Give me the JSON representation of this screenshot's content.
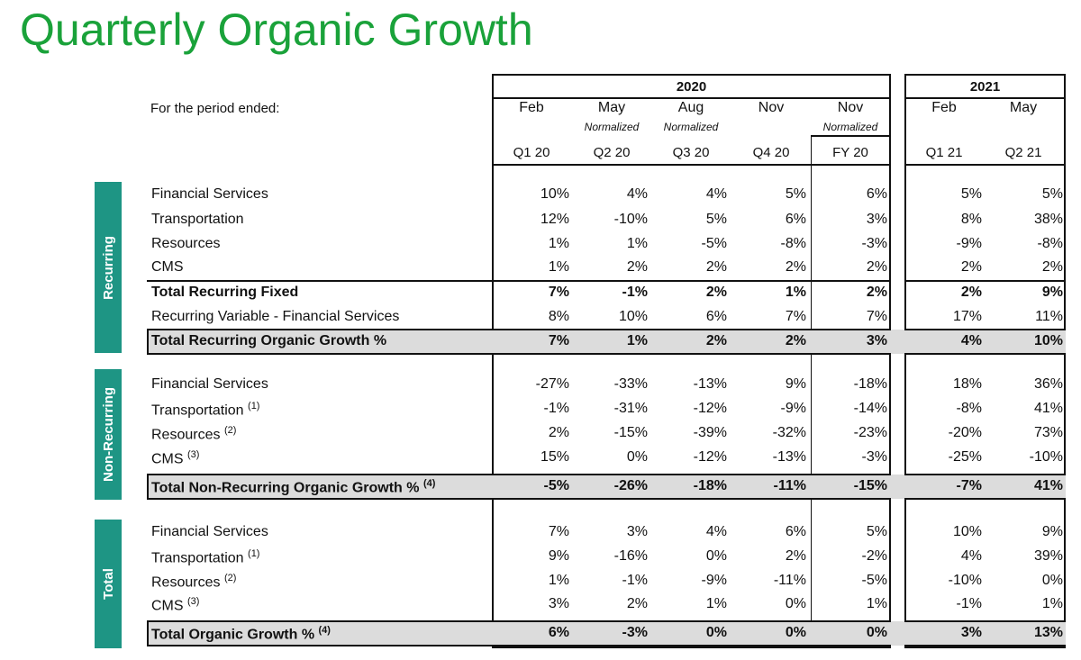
{
  "title": "Quarterly Organic Growth",
  "period_label": "For the period ended:",
  "years": [
    "2020",
    "2021"
  ],
  "columns": [
    {
      "month": "Feb",
      "normalized": "",
      "quarter": "Q1 20"
    },
    {
      "month": "May",
      "normalized": "Normalized",
      "quarter": "Q2 20"
    },
    {
      "month": "Aug",
      "normalized": "Normalized",
      "quarter": "Q3 20"
    },
    {
      "month": "Nov",
      "normalized": "",
      "quarter": "Q4 20"
    },
    {
      "month": "Nov",
      "normalized": "Normalized",
      "quarter": "FY 20"
    },
    {
      "month": "Feb",
      "normalized": "",
      "quarter": "Q1 21"
    },
    {
      "month": "May",
      "normalized": "",
      "quarter": "Q2 21"
    }
  ],
  "sections": [
    {
      "name": "Recurring",
      "rows": [
        {
          "label": "Financial Services",
          "note": "",
          "values": [
            "10%",
            "4%",
            "4%",
            "5%",
            "6%",
            "5%",
            "5%"
          ]
        },
        {
          "label": "Transportation",
          "note": "",
          "values": [
            "12%",
            "-10%",
            "5%",
            "6%",
            "3%",
            "8%",
            "38%"
          ]
        },
        {
          "label": "Resources",
          "note": "",
          "values": [
            "1%",
            "1%",
            "-5%",
            "-8%",
            "-3%",
            "-9%",
            "-8%"
          ]
        },
        {
          "label": "CMS",
          "note": "",
          "values": [
            "1%",
            "2%",
            "2%",
            "2%",
            "2%",
            "2%",
            "2%"
          ]
        },
        {
          "label": "Total Recurring Fixed",
          "note": "",
          "values": [
            "7%",
            "-1%",
            "2%",
            "1%",
            "2%",
            "2%",
            "9%"
          ]
        },
        {
          "label": "Recurring Variable - Financial Services",
          "note": "",
          "values": [
            "8%",
            "10%",
            "6%",
            "7%",
            "7%",
            "17%",
            "11%"
          ]
        },
        {
          "label": "Total Recurring Organic Growth %",
          "note": "",
          "values": [
            "7%",
            "1%",
            "2%",
            "2%",
            "3%",
            "4%",
            "10%"
          ]
        }
      ]
    },
    {
      "name": "Non-Recurring",
      "rows": [
        {
          "label": "Financial Services",
          "note": "",
          "values": [
            "-27%",
            "-33%",
            "-13%",
            "9%",
            "-18%",
            "18%",
            "36%"
          ]
        },
        {
          "label": "Transportation",
          "note": "(1)",
          "values": [
            "-1%",
            "-31%",
            "-12%",
            "-9%",
            "-14%",
            "-8%",
            "41%"
          ]
        },
        {
          "label": "Resources",
          "note": "(2)",
          "values": [
            "2%",
            "-15%",
            "-39%",
            "-32%",
            "-23%",
            "-20%",
            "73%"
          ]
        },
        {
          "label": "CMS",
          "note": "(3)",
          "values": [
            "15%",
            "0%",
            "-12%",
            "-13%",
            "-3%",
            "-25%",
            "-10%"
          ]
        },
        {
          "label": "Total Non-Recurring Organic Growth %",
          "note": "(4)",
          "values": [
            "-5%",
            "-26%",
            "-18%",
            "-11%",
            "-15%",
            "-7%",
            "41%"
          ]
        }
      ]
    },
    {
      "name": "Total",
      "rows": [
        {
          "label": "Financial Services",
          "note": "",
          "values": [
            "7%",
            "3%",
            "4%",
            "6%",
            "5%",
            "10%",
            "9%"
          ]
        },
        {
          "label": "Transportation",
          "note": "(1)",
          "values": [
            "9%",
            "-16%",
            "0%",
            "2%",
            "-2%",
            "4%",
            "39%"
          ]
        },
        {
          "label": "Resources",
          "note": "(2)",
          "values": [
            "1%",
            "-1%",
            "-9%",
            "-11%",
            "-5%",
            "-10%",
            "0%"
          ]
        },
        {
          "label": "CMS",
          "note": "(3)",
          "values": [
            "3%",
            "2%",
            "1%",
            "0%",
            "1%",
            "-1%",
            "1%"
          ]
        },
        {
          "label": "Total Organic Growth %",
          "note": "(4)",
          "values": [
            "6%",
            "-3%",
            "0%",
            "0%",
            "0%",
            "3%",
            "13%"
          ]
        }
      ]
    }
  ]
}
